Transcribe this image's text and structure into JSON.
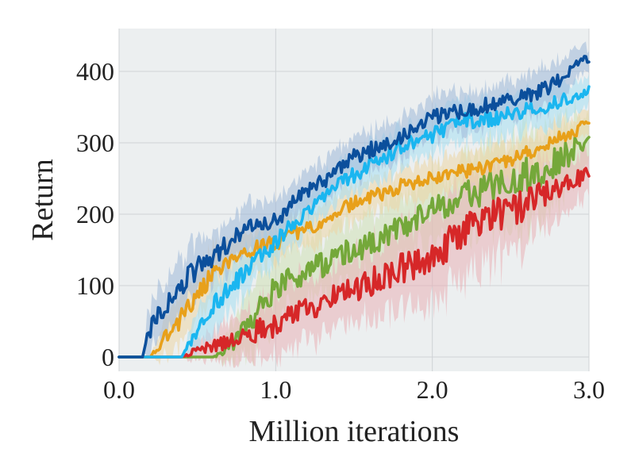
{
  "chart_data": {
    "type": "line",
    "title": "",
    "xlabel": "Million iterations",
    "ylabel": "Return",
    "xlim": [
      0.0,
      3.0
    ],
    "ylim": [
      -20,
      460
    ],
    "x_ticks": [
      {
        "value": 0.0,
        "label": "0.0"
      },
      {
        "value": 1.0,
        "label": "1.0"
      },
      {
        "value": 2.0,
        "label": "2.0"
      },
      {
        "value": 3.0,
        "label": "3.0"
      }
    ],
    "y_ticks": [
      {
        "value": 0,
        "label": "0"
      },
      {
        "value": 100,
        "label": "100"
      },
      {
        "value": 200,
        "label": "200"
      },
      {
        "value": 300,
        "label": "300"
      },
      {
        "value": 400,
        "label": "400"
      }
    ],
    "grid": true,
    "legend": "none",
    "background": "#eceff0",
    "series": [
      {
        "color": "#0b4f9c",
        "band_color": "#9fb8d8",
        "x": [
          0.0,
          0.15,
          0.18,
          0.25,
          0.3,
          0.4,
          0.5,
          0.6,
          0.7,
          0.8,
          0.9,
          1.0,
          1.1,
          1.2,
          1.3,
          1.4,
          1.5,
          1.6,
          1.7,
          1.8,
          1.9,
          2.0,
          2.1,
          2.2,
          2.3,
          2.4,
          2.5,
          2.6,
          2.7,
          2.8,
          2.9,
          3.0
        ],
        "y": [
          0,
          0,
          30,
          60,
          75,
          100,
          125,
          140,
          160,
          175,
          190,
          190,
          215,
          230,
          245,
          265,
          280,
          290,
          300,
          310,
          320,
          335,
          340,
          345,
          350,
          355,
          360,
          365,
          375,
          385,
          405,
          420
        ],
        "spread": [
          0,
          0,
          25,
          30,
          35,
          35,
          35,
          30,
          30,
          28,
          28,
          25,
          25,
          25,
          25,
          25,
          25,
          25,
          25,
          25,
          25,
          25,
          25,
          25,
          25,
          25,
          25,
          25,
          25,
          25,
          20,
          15
        ]
      },
      {
        "color": "#1ab6f0",
        "band_color": "#a6def2",
        "x": [
          0.0,
          0.4,
          0.45,
          0.5,
          0.6,
          0.7,
          0.8,
          0.9,
          1.0,
          1.1,
          1.2,
          1.3,
          1.4,
          1.5,
          1.6,
          1.7,
          1.8,
          1.9,
          2.0,
          2.1,
          2.2,
          2.3,
          2.4,
          2.5,
          2.6,
          2.7,
          2.8,
          2.9,
          3.0
        ],
        "y": [
          0,
          0,
          20,
          40,
          70,
          95,
          120,
          140,
          160,
          185,
          205,
          225,
          240,
          255,
          270,
          280,
          295,
          305,
          310,
          320,
          330,
          330,
          335,
          340,
          345,
          350,
          355,
          365,
          375
        ],
        "spread": [
          0,
          0,
          15,
          25,
          30,
          30,
          30,
          25,
          25,
          25,
          25,
          25,
          25,
          25,
          25,
          25,
          25,
          25,
          25,
          25,
          25,
          25,
          25,
          25,
          25,
          25,
          25,
          20,
          15
        ]
      },
      {
        "color": "#e8a01a",
        "band_color": "#ecd6a6",
        "x": [
          0.0,
          0.2,
          0.25,
          0.3,
          0.4,
          0.5,
          0.6,
          0.7,
          0.8,
          0.9,
          1.0,
          1.1,
          1.2,
          1.3,
          1.4,
          1.5,
          1.6,
          1.7,
          1.8,
          1.9,
          2.0,
          2.1,
          2.2,
          2.3,
          2.4,
          2.5,
          2.6,
          2.7,
          2.8,
          2.9,
          3.0
        ],
        "y": [
          0,
          0,
          15,
          30,
          55,
          90,
          115,
          130,
          145,
          155,
          160,
          170,
          180,
          190,
          205,
          215,
          225,
          230,
          240,
          245,
          250,
          255,
          260,
          265,
          270,
          275,
          285,
          295,
          305,
          315,
          330
        ],
        "spread": [
          0,
          0,
          15,
          25,
          30,
          30,
          30,
          28,
          25,
          25,
          25,
          22,
          22,
          22,
          22,
          22,
          22,
          22,
          22,
          22,
          22,
          22,
          22,
          22,
          22,
          22,
          22,
          22,
          22,
          20,
          15
        ]
      },
      {
        "color": "#74a83a",
        "band_color": "#cfe0b4",
        "x": [
          0.0,
          0.6,
          0.65,
          0.7,
          0.75,
          0.8,
          0.85,
          0.9,
          1.0,
          1.1,
          1.2,
          1.3,
          1.4,
          1.5,
          1.6,
          1.7,
          1.8,
          1.9,
          2.0,
          2.1,
          2.2,
          2.3,
          2.4,
          2.5,
          2.6,
          2.7,
          2.8,
          2.9,
          3.0
        ],
        "y": [
          0,
          0,
          5,
          15,
          25,
          40,
          55,
          70,
          95,
          110,
          120,
          130,
          140,
          150,
          160,
          170,
          180,
          195,
          205,
          215,
          225,
          230,
          240,
          245,
          255,
          265,
          275,
          290,
          300
        ],
        "spread": [
          0,
          0,
          10,
          20,
          30,
          35,
          40,
          40,
          40,
          40,
          40,
          40,
          40,
          40,
          40,
          40,
          40,
          40,
          40,
          40,
          45,
          50,
          55,
          55,
          55,
          55,
          50,
          40,
          30
        ]
      },
      {
        "color": "#d62728",
        "band_color": "#eab1b6",
        "x": [
          0.0,
          0.4,
          0.45,
          0.5,
          0.6,
          0.7,
          0.8,
          0.9,
          1.0,
          1.1,
          1.2,
          1.3,
          1.4,
          1.5,
          1.6,
          1.7,
          1.8,
          1.9,
          2.0,
          2.1,
          2.2,
          2.3,
          2.4,
          2.5,
          2.6,
          2.7,
          2.8,
          2.9,
          3.0
        ],
        "y": [
          0,
          0,
          5,
          10,
          15,
          22,
          30,
          38,
          45,
          55,
          65,
          75,
          85,
          95,
          105,
          115,
          125,
          135,
          145,
          160,
          175,
          185,
          195,
          205,
          215,
          225,
          235,
          245,
          255
        ],
        "spread": [
          0,
          0,
          8,
          12,
          18,
          25,
          30,
          35,
          40,
          40,
          40,
          40,
          40,
          40,
          45,
          45,
          50,
          55,
          55,
          60,
          60,
          60,
          60,
          55,
          50,
          45,
          40,
          35,
          25
        ]
      }
    ]
  }
}
